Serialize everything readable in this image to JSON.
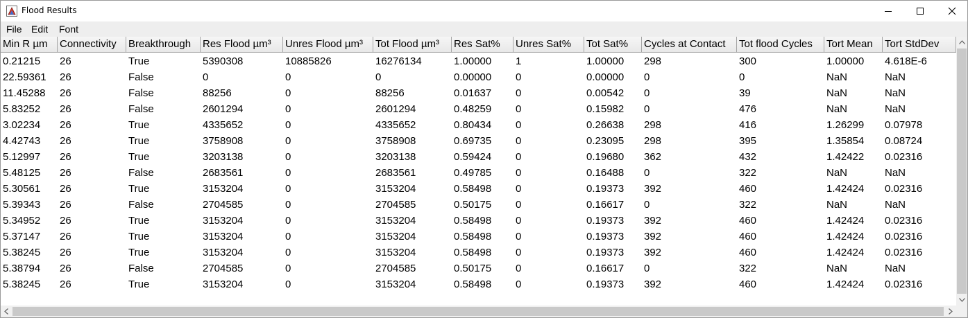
{
  "window": {
    "title": "Flood Results",
    "icon": "java-app-icon"
  },
  "menu": [
    "File",
    "Edit",
    "Font"
  ],
  "table": {
    "columns": [
      "Min R µm",
      "Connectivity",
      "Breakthrough",
      "Res Flood µm³",
      "Unres Flood µm³",
      "Tot Flood µm³",
      "Res Sat%",
      "Unres Sat%",
      "Tot Sat%",
      "Cycles at Contact",
      "Tot flood Cycles",
      "Tort Mean",
      "Tort StdDev"
    ],
    "rows": [
      [
        "0.21215",
        "26",
        "True",
        "5390308",
        "10885826",
        "16276134",
        "1.00000",
        "1",
        "1.00000",
        "298",
        "300",
        "1.00000",
        "4.618E-6"
      ],
      [
        "22.59361",
        "26",
        "False",
        "0",
        "0",
        "0",
        "0.00000",
        "0",
        "0.00000",
        "0",
        "0",
        "NaN",
        "NaN"
      ],
      [
        "11.45288",
        "26",
        "False",
        "88256",
        "0",
        "88256",
        "0.01637",
        "0",
        "0.00542",
        "0",
        "39",
        "NaN",
        "NaN"
      ],
      [
        "5.83252",
        "26",
        "False",
        "2601294",
        "0",
        "2601294",
        "0.48259",
        "0",
        "0.15982",
        "0",
        "476",
        "NaN",
        "NaN"
      ],
      [
        "3.02234",
        "26",
        "True",
        "4335652",
        "0",
        "4335652",
        "0.80434",
        "0",
        "0.26638",
        "298",
        "416",
        "1.26299",
        "0.07978"
      ],
      [
        "4.42743",
        "26",
        "True",
        "3758908",
        "0",
        "3758908",
        "0.69735",
        "0",
        "0.23095",
        "298",
        "395",
        "1.35854",
        "0.08724"
      ],
      [
        "5.12997",
        "26",
        "True",
        "3203138",
        "0",
        "3203138",
        "0.59424",
        "0",
        "0.19680",
        "362",
        "432",
        "1.42422",
        "0.02316"
      ],
      [
        "5.48125",
        "26",
        "False",
        "2683561",
        "0",
        "2683561",
        "0.49785",
        "0",
        "0.16488",
        "0",
        "322",
        "NaN",
        "NaN"
      ],
      [
        "5.30561",
        "26",
        "True",
        "3153204",
        "0",
        "3153204",
        "0.58498",
        "0",
        "0.19373",
        "392",
        "460",
        "1.42424",
        "0.02316"
      ],
      [
        "5.39343",
        "26",
        "False",
        "2704585",
        "0",
        "2704585",
        "0.50175",
        "0",
        "0.16617",
        "0",
        "322",
        "NaN",
        "NaN"
      ],
      [
        "5.34952",
        "26",
        "True",
        "3153204",
        "0",
        "3153204",
        "0.58498",
        "0",
        "0.19373",
        "392",
        "460",
        "1.42424",
        "0.02316"
      ],
      [
        "5.37147",
        "26",
        "True",
        "3153204",
        "0",
        "3153204",
        "0.58498",
        "0",
        "0.19373",
        "392",
        "460",
        "1.42424",
        "0.02316"
      ],
      [
        "5.38245",
        "26",
        "True",
        "3153204",
        "0",
        "3153204",
        "0.58498",
        "0",
        "0.19373",
        "392",
        "460",
        "1.42424",
        "0.02316"
      ],
      [
        "5.38794",
        "26",
        "False",
        "2704585",
        "0",
        "2704585",
        "0.50175",
        "0",
        "0.16617",
        "0",
        "322",
        "NaN",
        "NaN"
      ],
      [
        "5.38245",
        "26",
        "True",
        "3153204",
        "0",
        "3153204",
        "0.58498",
        "0",
        "0.19373",
        "392",
        "460",
        "1.42424",
        "0.02316"
      ]
    ]
  }
}
